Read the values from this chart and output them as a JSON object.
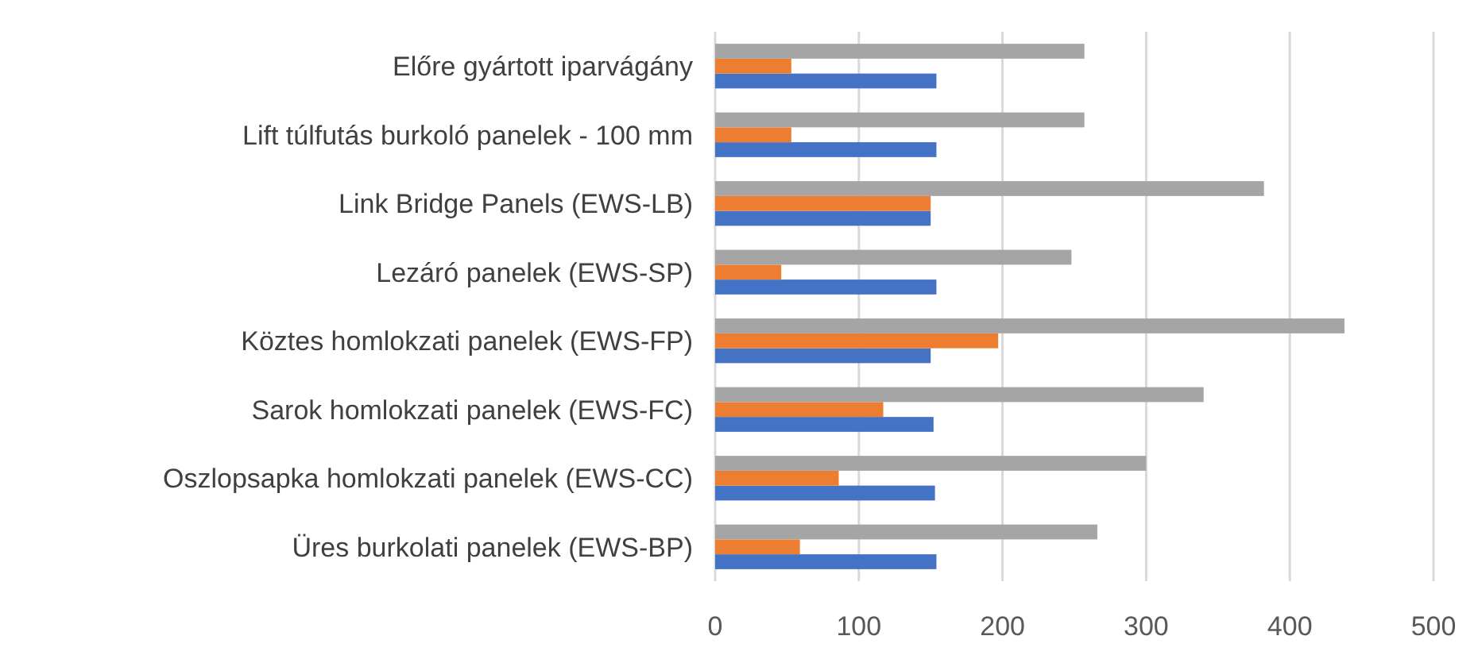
{
  "chart_data": {
    "type": "bar",
    "orientation": "horizontal",
    "categories": [
      "Előre gyártott iparvágány",
      "Lift túlfutás burkoló panelek - 100 mm",
      "Link Bridge Panels (EWS-LB)",
      "Lezáró panelek (EWS-SP)",
      "Köztes homlokzati panelek (EWS-FP)",
      "Sarok homlokzati panelek (EWS-FC)",
      "Oszlopsapka homlokzati panelek (EWS-CC)",
      "Üres burkolati panelek (EWS-BP)"
    ],
    "series": [
      {
        "color": "#4472c4",
        "values": [
          154,
          154,
          150,
          154,
          150,
          152,
          153,
          154
        ]
      },
      {
        "color": "#ed7d31",
        "values": [
          53,
          53,
          150,
          46,
          197,
          117,
          86,
          59
        ]
      },
      {
        "color": "#a5a5a5",
        "values": [
          257,
          257,
          382,
          248,
          438,
          340,
          300,
          266
        ]
      }
    ],
    "xlim": [
      0,
      500
    ],
    "xticks": [
      0,
      100,
      200,
      300,
      400,
      500
    ],
    "grid": "x"
  }
}
